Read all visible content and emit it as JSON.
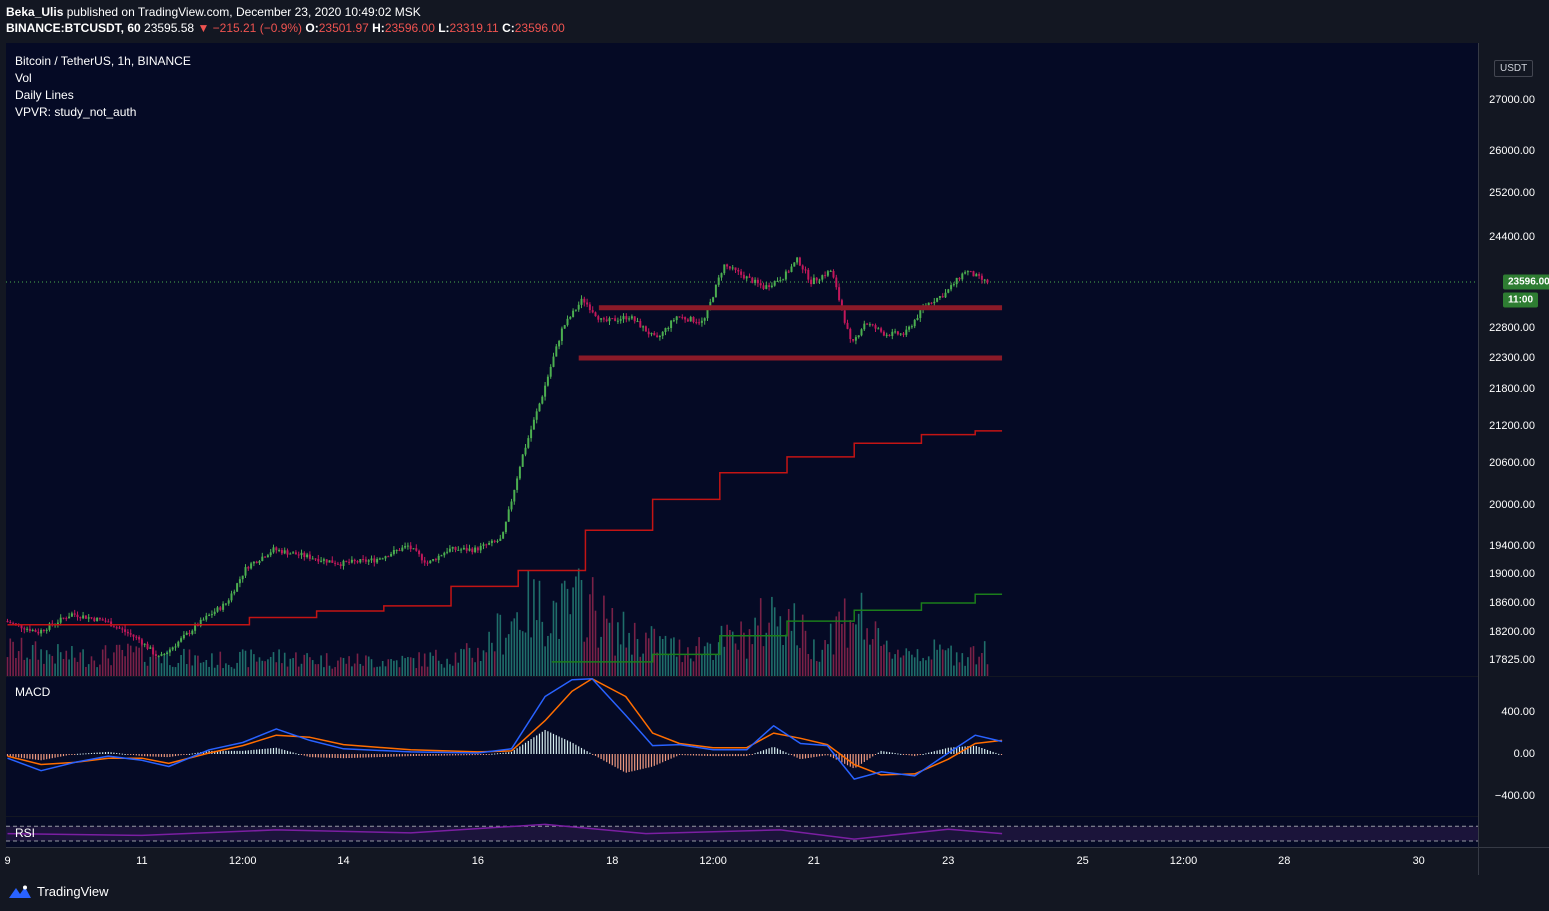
{
  "header": {
    "author": "Beka_Ulis",
    "published_text": "published on TradingView.com, December 23, 2020 10:49:02 MSK",
    "symbol": "BINANCE:BTCUSDT, 60",
    "last": "23595.58",
    "change": "▼ −215.21 (−0.9%)",
    "o_label": "O:",
    "o_value": "23501.97",
    "h_label": "H:",
    "h_value": "23596.00",
    "l_label": "L:",
    "l_value": "23319.11",
    "c_label": "C:",
    "c_value": "23596.00"
  },
  "legend": {
    "title": "Bitcoin / TetherUS, 1h, BINANCE",
    "vol": "Vol",
    "daily_lines": "Daily Lines",
    "vpvr": "VPVR: study_not_auth"
  },
  "macd_label": "MACD",
  "rsi_label": "RSI",
  "currency": "USDT",
  "last_price_badge": "23596.00",
  "time_badge": "11:00",
  "price_ticks": [
    "27000.00",
    "26000.00",
    "25200.00",
    "24400.00",
    "23596.00",
    "22800.00",
    "22300.00",
    "21800.00",
    "21200.00",
    "20600.00",
    "20000.00",
    "19400.00",
    "19000.00",
    "18600.00",
    "18200.00",
    "17825.00"
  ],
  "macd_ticks": [
    "400.00",
    "0.00",
    "−400.00"
  ],
  "time_ticks": [
    "9",
    "11",
    "12:00",
    "14",
    "16",
    "18",
    "12:00",
    "21",
    "23",
    "25",
    "12:00",
    "28",
    "30"
  ],
  "footer_brand": "TradingView",
  "colors": {
    "up": "#4caf50",
    "down": "#c2185b",
    "level": "#8b1a28",
    "daily_red": "#c41414",
    "daily_green": "#1b7d1b",
    "macd": "#2962ff",
    "signal": "#ff6d00",
    "rsi": "#7b1fa2"
  },
  "chart_data": {
    "type": "candlestick",
    "symbol": "BINANCE:BTCUSDT",
    "interval": "1h",
    "y_axis": {
      "label_values": [
        27000,
        26000,
        25200,
        24400,
        23596,
        22800,
        22300,
        21800,
        21200,
        20600,
        20000,
        19400,
        19000,
        18600,
        18200,
        17825
      ]
    },
    "price_path": [
      {
        "x": 9.0,
        "y": 18350
      },
      {
        "x": 9.5,
        "y": 18200
      },
      {
        "x": 10.0,
        "y": 18450
      },
      {
        "x": 10.5,
        "y": 18350
      },
      {
        "x": 11.0,
        "y": 18100
      },
      {
        "x": 11.3,
        "y": 17850
      },
      {
        "x": 11.5,
        "y": 18000
      },
      {
        "x": 12.0,
        "y": 18400
      },
      {
        "x": 12.3,
        "y": 18600
      },
      {
        "x": 12.6,
        "y": 19100
      },
      {
        "x": 13.0,
        "y": 19350
      },
      {
        "x": 13.5,
        "y": 19250
      },
      {
        "x": 14.0,
        "y": 19150
      },
      {
        "x": 14.5,
        "y": 19200
      },
      {
        "x": 15.0,
        "y": 19400
      },
      {
        "x": 15.3,
        "y": 19150
      },
      {
        "x": 15.6,
        "y": 19350
      },
      {
        "x": 16.0,
        "y": 19350
      },
      {
        "x": 16.4,
        "y": 19500
      },
      {
        "x": 16.7,
        "y": 20700
      },
      {
        "x": 17.0,
        "y": 21700
      },
      {
        "x": 17.3,
        "y": 22800
      },
      {
        "x": 17.6,
        "y": 23300
      },
      {
        "x": 17.9,
        "y": 22900
      },
      {
        "x": 18.3,
        "y": 23000
      },
      {
        "x": 18.7,
        "y": 22600
      },
      {
        "x": 19.0,
        "y": 23000
      },
      {
        "x": 19.4,
        "y": 22900
      },
      {
        "x": 19.7,
        "y": 23900
      },
      {
        "x": 20.0,
        "y": 23700
      },
      {
        "x": 20.3,
        "y": 23500
      },
      {
        "x": 20.6,
        "y": 23700
      },
      {
        "x": 20.8,
        "y": 24000
      },
      {
        "x": 21.0,
        "y": 23600
      },
      {
        "x": 21.3,
        "y": 23800
      },
      {
        "x": 21.6,
        "y": 22500
      },
      {
        "x": 21.8,
        "y": 22900
      },
      {
        "x": 22.1,
        "y": 22700
      },
      {
        "x": 22.4,
        "y": 22700
      },
      {
        "x": 22.7,
        "y": 23200
      },
      {
        "x": 23.0,
        "y": 23400
      },
      {
        "x": 23.3,
        "y": 23800
      },
      {
        "x": 23.6,
        "y": 23596
      }
    ],
    "horizontal_levels": [
      {
        "y": 23150,
        "x_start": 17.8,
        "x_end": 23.8
      },
      {
        "y": 22300,
        "x_start": 17.5,
        "x_end": 23.8
      }
    ],
    "daily_lines_red": [
      {
        "from": 9.0,
        "to": 12.6,
        "y": 18300
      },
      {
        "from": 12.6,
        "to": 13.6,
        "y": 18400
      },
      {
        "from": 13.6,
        "to": 14.6,
        "y": 18490
      },
      {
        "from": 14.6,
        "to": 15.6,
        "y": 18560
      },
      {
        "from": 15.6,
        "to": 16.6,
        "y": 18830
      },
      {
        "from": 16.6,
        "to": 17.6,
        "y": 19050
      },
      {
        "from": 17.6,
        "to": 18.6,
        "y": 19630
      },
      {
        "from": 18.6,
        "to": 19.6,
        "y": 20080
      },
      {
        "from": 19.6,
        "to": 20.6,
        "y": 20460
      },
      {
        "from": 20.6,
        "to": 21.6,
        "y": 20700
      },
      {
        "from": 21.6,
        "to": 22.6,
        "y": 20920
      },
      {
        "from": 22.6,
        "to": 23.4,
        "y": 21060
      },
      {
        "from": 23.4,
        "to": 23.8,
        "y": 21120
      }
    ],
    "daily_lines_green": [
      {
        "from": 17.1,
        "to": 18.6,
        "y": 17800
      },
      {
        "from": 18.6,
        "to": 19.6,
        "y": 17900
      },
      {
        "from": 19.6,
        "to": 20.6,
        "y": 18150
      },
      {
        "from": 20.6,
        "to": 21.6,
        "y": 18350
      },
      {
        "from": 21.6,
        "to": 22.6,
        "y": 18500
      },
      {
        "from": 22.6,
        "to": 23.4,
        "y": 18600
      },
      {
        "from": 23.4,
        "to": 23.8,
        "y": 18720
      }
    ],
    "volume": [
      {
        "x": 9.0,
        "v": 0.35
      },
      {
        "x": 10.0,
        "v": 0.25
      },
      {
        "x": 11.0,
        "v": 0.3
      },
      {
        "x": 12.0,
        "v": 0.2
      },
      {
        "x": 13.0,
        "v": 0.25
      },
      {
        "x": 14.0,
        "v": 0.2
      },
      {
        "x": 15.0,
        "v": 0.2
      },
      {
        "x": 16.0,
        "v": 0.3
      },
      {
        "x": 16.7,
        "v": 0.9
      },
      {
        "x": 17.3,
        "v": 0.85
      },
      {
        "x": 17.6,
        "v": 1.0
      },
      {
        "x": 18.0,
        "v": 0.6
      },
      {
        "x": 19.0,
        "v": 0.35
      },
      {
        "x": 20.0,
        "v": 0.5
      },
      {
        "x": 20.5,
        "v": 0.9
      },
      {
        "x": 21.0,
        "v": 0.35
      },
      {
        "x": 21.6,
        "v": 0.9
      },
      {
        "x": 22.0,
        "v": 0.35
      },
      {
        "x": 23.0,
        "v": 0.3
      },
      {
        "x": 23.7,
        "v": 0.3
      }
    ],
    "macd": {
      "y_axis_values": [
        400,
        0,
        -400
      ],
      "macd_line": [
        {
          "x": 9.0,
          "y": -40
        },
        {
          "x": 9.5,
          "y": -160
        },
        {
          "x": 10.0,
          "y": -80
        },
        {
          "x": 10.5,
          "y": -20
        },
        {
          "x": 11.0,
          "y": -60
        },
        {
          "x": 11.4,
          "y": -120
        },
        {
          "x": 12.0,
          "y": 40
        },
        {
          "x": 12.5,
          "y": 110
        },
        {
          "x": 13.0,
          "y": 240
        },
        {
          "x": 13.5,
          "y": 130
        },
        {
          "x": 14.0,
          "y": 50
        },
        {
          "x": 15.0,
          "y": 20
        },
        {
          "x": 16.0,
          "y": 10
        },
        {
          "x": 16.5,
          "y": 50
        },
        {
          "x": 17.0,
          "y": 550
        },
        {
          "x": 17.4,
          "y": 710
        },
        {
          "x": 17.7,
          "y": 720
        },
        {
          "x": 18.2,
          "y": 370
        },
        {
          "x": 18.6,
          "y": 80
        },
        {
          "x": 19.0,
          "y": 90
        },
        {
          "x": 19.5,
          "y": 40
        },
        {
          "x": 20.0,
          "y": 40
        },
        {
          "x": 20.4,
          "y": 270
        },
        {
          "x": 20.8,
          "y": 100
        },
        {
          "x": 21.2,
          "y": 80
        },
        {
          "x": 21.6,
          "y": -240
        },
        {
          "x": 22.0,
          "y": -170
        },
        {
          "x": 22.5,
          "y": -210
        },
        {
          "x": 23.0,
          "y": 10
        },
        {
          "x": 23.4,
          "y": 180
        },
        {
          "x": 23.8,
          "y": 120
        }
      ],
      "signal_line": [
        {
          "x": 9.0,
          "y": -20
        },
        {
          "x": 9.5,
          "y": -100
        },
        {
          "x": 10.0,
          "y": -80
        },
        {
          "x": 10.5,
          "y": -40
        },
        {
          "x": 11.0,
          "y": -40
        },
        {
          "x": 11.4,
          "y": -90
        },
        {
          "x": 12.0,
          "y": 10
        },
        {
          "x": 12.5,
          "y": 80
        },
        {
          "x": 13.0,
          "y": 180
        },
        {
          "x": 13.5,
          "y": 160
        },
        {
          "x": 14.0,
          "y": 90
        },
        {
          "x": 15.0,
          "y": 40
        },
        {
          "x": 16.0,
          "y": 20
        },
        {
          "x": 16.5,
          "y": 30
        },
        {
          "x": 17.0,
          "y": 320
        },
        {
          "x": 17.4,
          "y": 600
        },
        {
          "x": 17.7,
          "y": 720
        },
        {
          "x": 18.2,
          "y": 550
        },
        {
          "x": 18.6,
          "y": 200
        },
        {
          "x": 19.0,
          "y": 100
        },
        {
          "x": 19.5,
          "y": 60
        },
        {
          "x": 20.0,
          "y": 60
        },
        {
          "x": 20.4,
          "y": 200
        },
        {
          "x": 20.8,
          "y": 150
        },
        {
          "x": 21.2,
          "y": 90
        },
        {
          "x": 21.6,
          "y": -100
        },
        {
          "x": 22.0,
          "y": -200
        },
        {
          "x": 22.5,
          "y": -190
        },
        {
          "x": 23.0,
          "y": -50
        },
        {
          "x": 23.4,
          "y": 100
        },
        {
          "x": 23.8,
          "y": 130
        }
      ]
    },
    "rsi": {
      "band_upper": 70,
      "band_lower": 30,
      "values": [
        {
          "x": 9.0,
          "y": 50
        },
        {
          "x": 11.0,
          "y": 45
        },
        {
          "x": 13.0,
          "y": 60
        },
        {
          "x": 15.0,
          "y": 52
        },
        {
          "x": 17.0,
          "y": 75
        },
        {
          "x": 18.5,
          "y": 50
        },
        {
          "x": 20.5,
          "y": 60
        },
        {
          "x": 21.6,
          "y": 35
        },
        {
          "x": 23.0,
          "y": 62
        },
        {
          "x": 23.8,
          "y": 50
        }
      ]
    }
  }
}
